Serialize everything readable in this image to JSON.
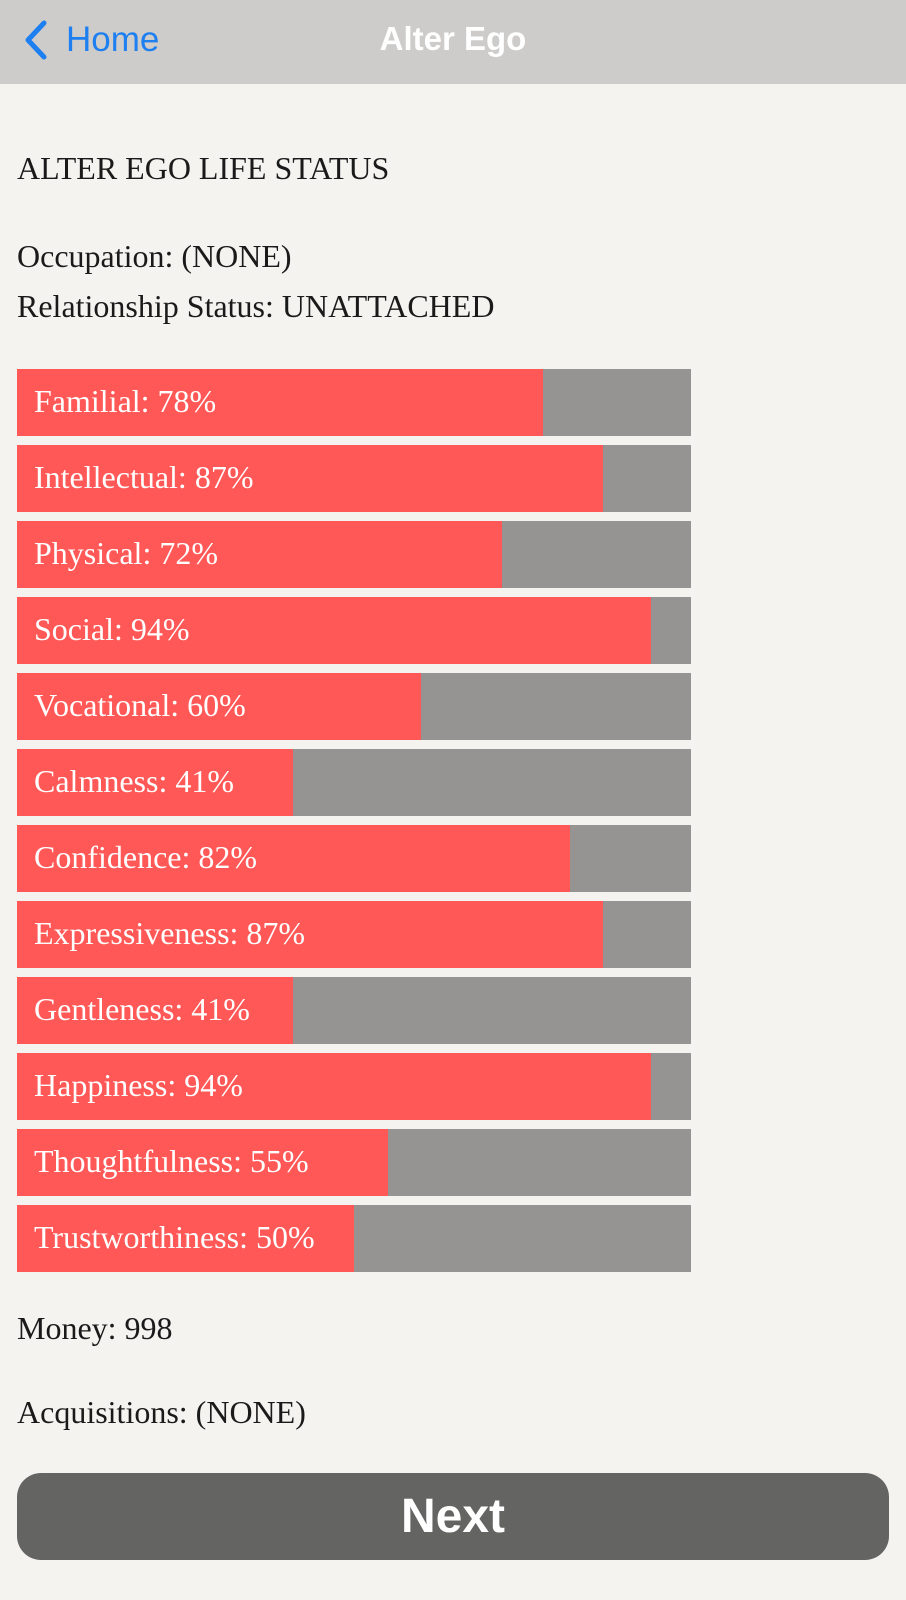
{
  "navbar": {
    "back_label": "Home",
    "back_icon": "chevron-left-icon",
    "title": "Alter Ego"
  },
  "status": {
    "heading": "ALTER EGO LIFE STATUS",
    "occupation": "Occupation: (NONE)",
    "relationship": "Relationship Status: UNATTACHED",
    "money": "Money: 998",
    "acquisitions": "Acquisitions: (NONE)"
  },
  "colors": {
    "fill": "#ff5856",
    "track": "#959492",
    "accent": "#1e80f0"
  },
  "stats": [
    {
      "label": "Familial: 78%",
      "percent": 78
    },
    {
      "label": "Intellectual: 87%",
      "percent": 87
    },
    {
      "label": "Physical: 72%",
      "percent": 72
    },
    {
      "label": "Social: 94%",
      "percent": 94
    },
    {
      "label": "Vocational: 60%",
      "percent": 60
    },
    {
      "label": "Calmness: 41%",
      "percent": 41
    },
    {
      "label": "Confidence: 82%",
      "percent": 82
    },
    {
      "label": "Expressiveness: 87%",
      "percent": 87
    },
    {
      "label": "Gentleness: 41%",
      "percent": 41
    },
    {
      "label": "Happiness: 94%",
      "percent": 94
    },
    {
      "label": "Thoughtfulness: 55%",
      "percent": 55
    },
    {
      "label": "Trustworthiness: 50%",
      "percent": 50
    }
  ],
  "actions": {
    "next_label": "Next"
  }
}
